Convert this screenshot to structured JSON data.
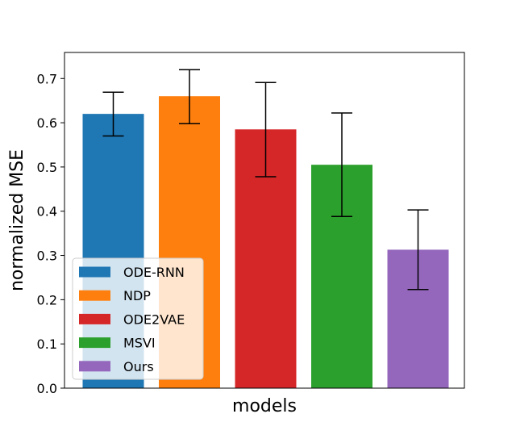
{
  "chart_data": {
    "type": "bar",
    "title": "",
    "xlabel": "models",
    "ylabel": "normalized MSE",
    "ylim": [
      0.0,
      0.75
    ],
    "yticks": [
      "0.0",
      "0.1",
      "0.2",
      "0.3",
      "0.4",
      "0.5",
      "0.6",
      "0.7"
    ],
    "grid": false,
    "legend_position": "lower-left",
    "categories": [
      "ODE-RNN",
      "NDP",
      "ODE2VAE",
      "MSVI",
      "Ours"
    ],
    "values": [
      0.62,
      0.66,
      0.585,
      0.505,
      0.313
    ],
    "error_low": [
      0.57,
      0.598,
      0.478,
      0.388,
      0.223
    ],
    "error_high": [
      0.669,
      0.72,
      0.691,
      0.622,
      0.403
    ],
    "colors": [
      "#1f77b4",
      "#ff7f0e",
      "#d62728",
      "#2ca02c",
      "#9467bd"
    ]
  }
}
